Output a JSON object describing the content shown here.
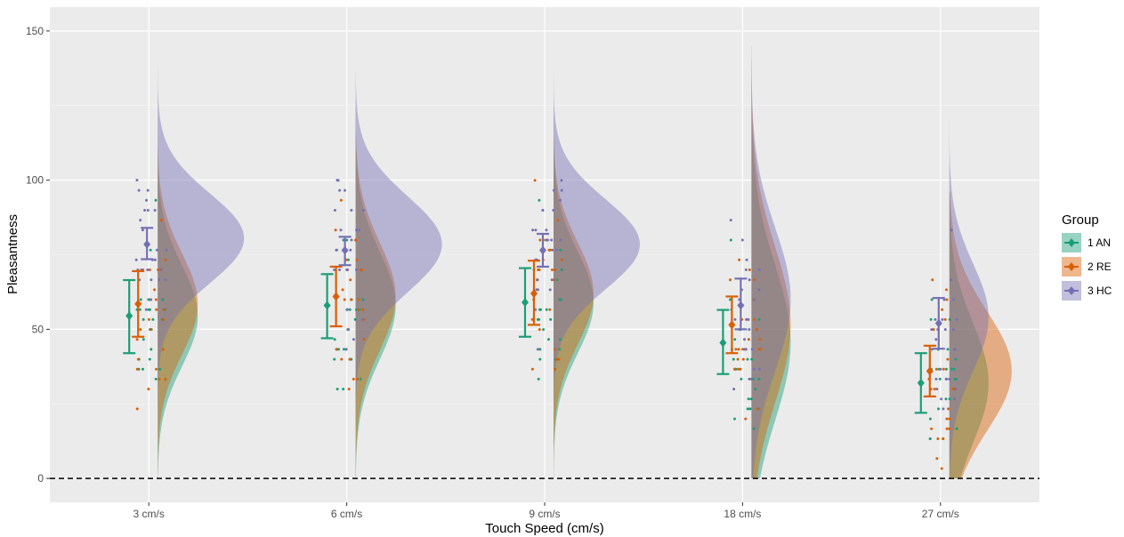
{
  "chart_data": {
    "type": "raincloud",
    "xlabel": "Touch Speed (cm/s)",
    "ylabel": "Pleasantness",
    "categories": [
      "3 cm/s",
      "6 cm/s",
      "9 cm/s",
      "18 cm/s",
      "27 cm/s"
    ],
    "ylim": [
      -8,
      158
    ],
    "yticks": [
      0,
      50,
      100,
      150
    ],
    "reference_line": {
      "y": 0,
      "style": "dashed"
    },
    "grid": true,
    "legend": {
      "title": "Group",
      "position": "right"
    },
    "series": [
      {
        "name": "1 AN",
        "color": "#1b9e77",
        "means": [
          54.5,
          58.0,
          59.0,
          45.5,
          32.0
        ],
        "ci_low": [
          42.0,
          47.0,
          47.5,
          35.0,
          22.0
        ],
        "ci_high": [
          66.5,
          68.5,
          70.5,
          56.5,
          42.0
        ],
        "density_peak": [
          143,
          137,
          141,
          122,
          110
        ]
      },
      {
        "name": "2 RE",
        "color": "#d95f02",
        "means": [
          58.5,
          61.0,
          62.0,
          51.5,
          36.0
        ],
        "ci_low": [
          47.5,
          51.0,
          51.5,
          42.0,
          27.5
        ],
        "ci_high": [
          69.5,
          71.0,
          73.0,
          61.0,
          44.5
        ],
        "density_peak": [
          131,
          132,
          137,
          126,
          30
        ]
      },
      {
        "name": "3 HC",
        "color": "#7570b3",
        "means": [
          78.5,
          76.5,
          76.5,
          58.0,
          52.0
        ],
        "ci_low": [
          73.5,
          71.5,
          71.0,
          50.0,
          43.5
        ],
        "ci_high": [
          84.0,
          81.0,
          82.0,
          67.0,
          60.5
        ],
        "density_peak": [
          81,
          74,
          79,
          120,
          117
        ]
      }
    ]
  }
}
